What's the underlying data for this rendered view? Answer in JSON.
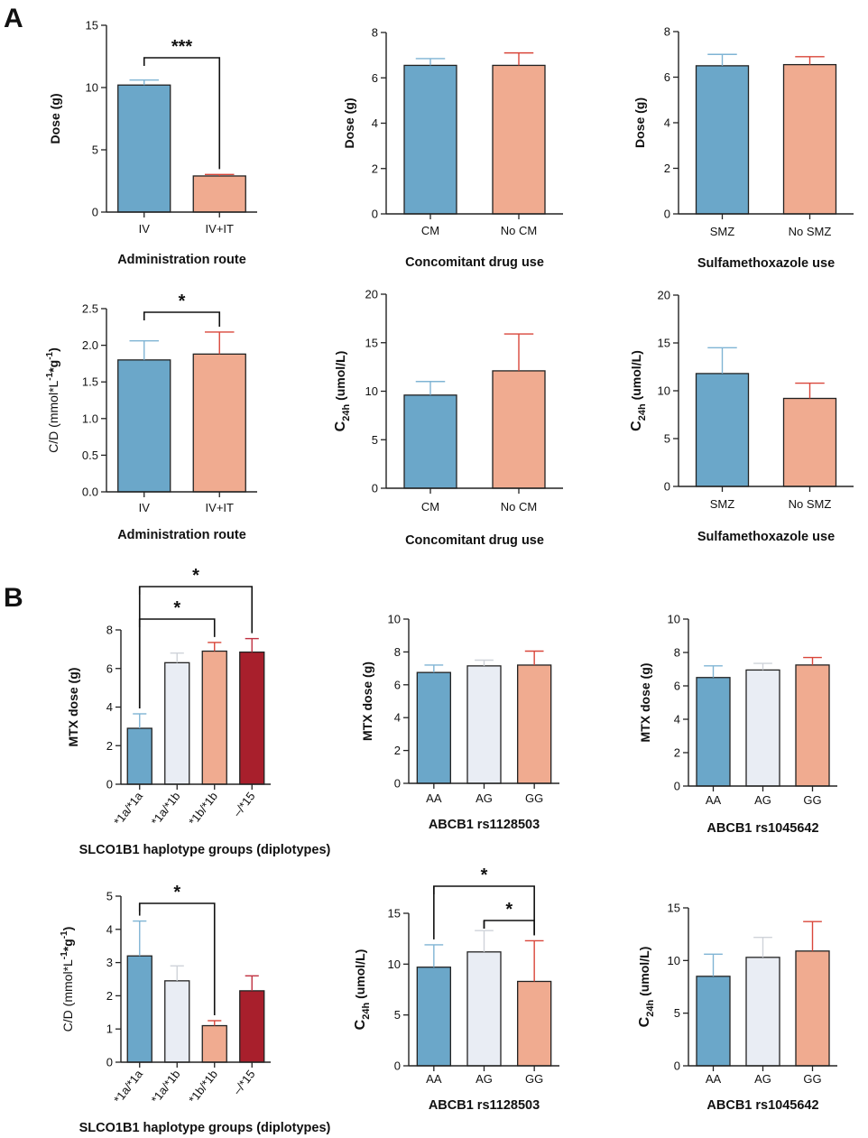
{
  "figure": {
    "panel_labels": [
      "A",
      "B"
    ]
  },
  "colors": {
    "blue": "#6ba7c9",
    "salmon": "#f0ab90",
    "light": "#e9edf4",
    "red": "#a81f2c",
    "axis": "#222222"
  },
  "chart_data": [
    {
      "id": "a1",
      "type": "bar",
      "categories": [
        "IV",
        "IV+IT"
      ],
      "values": [
        10.2,
        2.9
      ],
      "errors": [
        0.4,
        0.12
      ],
      "colors": [
        "blue",
        "salmon"
      ],
      "ylim": [
        0,
        15
      ],
      "yticks": [
        0,
        5,
        10,
        15
      ],
      "ylabel": "Dose (g)",
      "xlabel": "Administration route",
      "annotations": [
        {
          "from": 0,
          "to": 1,
          "label": "***"
        }
      ]
    },
    {
      "id": "a2",
      "type": "bar",
      "categories": [
        "CM",
        "No CM"
      ],
      "values": [
        6.55,
        6.55
      ],
      "errors": [
        0.3,
        0.55
      ],
      "colors": [
        "blue",
        "salmon"
      ],
      "ylim": [
        0,
        8
      ],
      "yticks": [
        0,
        2,
        4,
        6,
        8
      ],
      "ylabel": "Dose (g)",
      "xlabel": "Concomitant drug use",
      "annotations": []
    },
    {
      "id": "a3",
      "type": "bar",
      "categories": [
        "SMZ",
        "No SMZ"
      ],
      "values": [
        6.5,
        6.55
      ],
      "errors": [
        0.5,
        0.35
      ],
      "colors": [
        "blue",
        "salmon"
      ],
      "ylim": [
        0,
        8
      ],
      "yticks": [
        0,
        2,
        4,
        6,
        8
      ],
      "ylabel": "Dose (g)",
      "xlabel": "Sulfamethoxazole use",
      "annotations": []
    },
    {
      "id": "a4",
      "type": "bar",
      "categories": [
        "IV",
        "IV+IT"
      ],
      "values": [
        1.8,
        1.88
      ],
      "errors": [
        0.26,
        0.3
      ],
      "colors": [
        "blue",
        "salmon"
      ],
      "ylim": [
        0,
        2.5
      ],
      "yticks": [
        0.0,
        0.5,
        1.0,
        1.5,
        2.0,
        2.5
      ],
      "ytick_labels": [
        "0.0",
        "0.5",
        "1.0",
        "1.5",
        "2.0",
        "2.5"
      ],
      "ylabel": "C/D (mmol*L",
      "ylabel_sup1": "-1",
      "ylabel_mid": "*g",
      "ylabel_sup2": "-1",
      "ylabel_end": ")",
      "xlabel": "Administration route",
      "annotations": [
        {
          "from": 0,
          "to": 1,
          "label": "*"
        }
      ]
    },
    {
      "id": "a5",
      "type": "bar",
      "categories": [
        "CM",
        "No CM"
      ],
      "values": [
        9.6,
        12.1
      ],
      "errors": [
        1.4,
        3.8
      ],
      "colors": [
        "blue",
        "salmon"
      ],
      "ylim": [
        0,
        20
      ],
      "yticks": [
        0,
        5,
        10,
        15,
        20
      ],
      "ylabel": "C",
      "ylabel_sub": "24h",
      "ylabel_end": " (umol/L)",
      "xlabel": "Concomitant drug use",
      "annotations": []
    },
    {
      "id": "a6",
      "type": "bar",
      "categories": [
        "SMZ",
        "No SMZ"
      ],
      "values": [
        11.8,
        9.2
      ],
      "errors": [
        2.7,
        1.6
      ],
      "colors": [
        "blue",
        "salmon"
      ],
      "ylim": [
        0,
        20
      ],
      "yticks": [
        0,
        5,
        10,
        15,
        20
      ],
      "ylabel": "C",
      "ylabel_sub": "24h",
      "ylabel_end": " (umol/L)",
      "xlabel": "Sulfamethoxazole use",
      "annotations": []
    },
    {
      "id": "b1",
      "type": "bar",
      "categories": [
        "*1a/*1a",
        "*1a/*1b",
        "*1b/*1b",
        "–/*15"
      ],
      "values": [
        2.9,
        6.3,
        6.9,
        6.85
      ],
      "errors": [
        0.75,
        0.5,
        0.45,
        0.7
      ],
      "colors": [
        "blue",
        "light",
        "salmon",
        "red"
      ],
      "ylim": [
        0,
        8
      ],
      "yticks": [
        0,
        2,
        4,
        6,
        8
      ],
      "ylabel": "MTX dose (g)",
      "xlabel": "SLCO1B1 haplotype groups (diplotypes)",
      "rotate_labels": true,
      "annotations": [
        {
          "from": 0,
          "to": 2,
          "label": "*"
        },
        {
          "from": 0,
          "to": 3,
          "label": "*"
        }
      ]
    },
    {
      "id": "b2",
      "type": "bar",
      "categories": [
        "AA",
        "AG",
        "GG"
      ],
      "values": [
        6.75,
        7.15,
        7.2
      ],
      "errors": [
        0.45,
        0.35,
        0.85
      ],
      "colors": [
        "blue",
        "light",
        "salmon"
      ],
      "ylim": [
        0,
        10
      ],
      "yticks": [
        0,
        2,
        4,
        6,
        8,
        10
      ],
      "ylabel": "MTX dose (g)",
      "xlabel": "ABCB1 rs1128503",
      "annotations": []
    },
    {
      "id": "b3",
      "type": "bar",
      "categories": [
        "AA",
        "AG",
        "GG"
      ],
      "values": [
        6.5,
        6.95,
        7.25
      ],
      "errors": [
        0.7,
        0.4,
        0.45
      ],
      "colors": [
        "blue",
        "light",
        "salmon"
      ],
      "ylim": [
        0,
        10
      ],
      "yticks": [
        0,
        2,
        4,
        6,
        8,
        10
      ],
      "ylabel": "MTX dose (g)",
      "xlabel": "ABCB1 rs1045642",
      "annotations": []
    },
    {
      "id": "b4",
      "type": "bar",
      "categories": [
        "*1a/*1a",
        "*1a/*1b",
        "*1b/*1b",
        "–/*15"
      ],
      "values": [
        3.2,
        2.45,
        1.1,
        2.15
      ],
      "errors": [
        1.05,
        0.45,
        0.15,
        0.45
      ],
      "colors": [
        "blue",
        "light",
        "salmon",
        "red"
      ],
      "ylim": [
        0,
        5
      ],
      "yticks": [
        0,
        1,
        2,
        3,
        4,
        5
      ],
      "ylabel": "C/D (mmol*L",
      "ylabel_sup1": "-1",
      "ylabel_mid": "*g",
      "ylabel_sup2": "-1",
      "ylabel_end": ")",
      "xlabel": "SLCO1B1 haplotype groups (diplotypes)",
      "rotate_labels": true,
      "annotations": [
        {
          "from": 0,
          "to": 2,
          "label": "*"
        }
      ]
    },
    {
      "id": "b5",
      "type": "bar",
      "categories": [
        "AA",
        "AG",
        "GG"
      ],
      "values": [
        9.7,
        11.2,
        8.3
      ],
      "errors": [
        2.2,
        2.1,
        4.0
      ],
      "colors": [
        "blue",
        "light",
        "salmon"
      ],
      "ylim": [
        0,
        15
      ],
      "yticks": [
        0,
        5,
        10,
        15
      ],
      "ylabel": "C",
      "ylabel_sub": "24h",
      "ylabel_end": " (umol/L)",
      "xlabel": "ABCB1 rs1128503",
      "annotations": [
        {
          "from": 1,
          "to": 2,
          "label": "*"
        },
        {
          "from": 0,
          "to": 2,
          "label": "*"
        }
      ]
    },
    {
      "id": "b6",
      "type": "bar",
      "categories": [
        "AA",
        "AG",
        "GG"
      ],
      "values": [
        8.5,
        10.3,
        10.9
      ],
      "errors": [
        2.1,
        1.9,
        2.8
      ],
      "colors": [
        "blue",
        "light",
        "salmon"
      ],
      "ylim": [
        0,
        15
      ],
      "yticks": [
        0,
        5,
        10,
        15
      ],
      "ylabel": "C",
      "ylabel_sub": "24h",
      "ylabel_end": " (umol/L)",
      "xlabel": "ABCB1 rs1045642",
      "annotations": []
    }
  ]
}
